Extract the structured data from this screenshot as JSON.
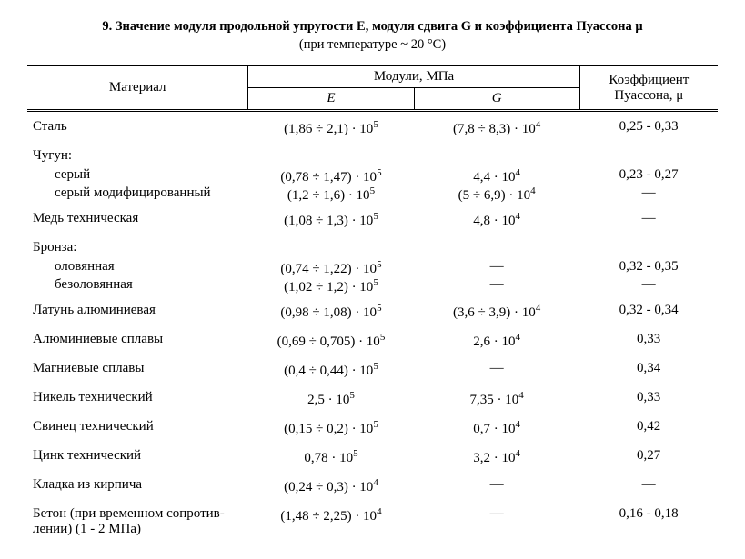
{
  "title": {
    "bold": "9. Значение модуля продольной упругости E, модуля сдвига G и коэффициента Пуассона μ",
    "sub": "(при температуре ~ 20 °C)"
  },
  "headers": {
    "material": "Материал",
    "moduli": "Модули, МПа",
    "E": "E",
    "G": "G",
    "poisson": "Коэффициент Пуассона, μ"
  },
  "rows": {
    "steel": {
      "m": "Сталь",
      "E": "(1,86 ÷ 2,1) · 10",
      "Ee": "5",
      "G": "(7,8 ÷ 8,3) · 10",
      "Ge": "4",
      "mu": "0,25 - 0,33"
    },
    "castiron_h": {
      "m": "Чугун:"
    },
    "castiron_gray": {
      "m": "серый",
      "E": "(0,78 ÷ 1,47) · 10",
      "Ee": "5",
      "G": "4,4 · 10",
      "Ge": "4",
      "mu": "0,23 - 0,27"
    },
    "castiron_mod": {
      "m": "серый модифицированный",
      "E": "(1,2 ÷ 1,6) · 10",
      "Ee": "5",
      "G": "(5 ÷ 6,9) · 10",
      "Ge": "4",
      "mu": "—"
    },
    "copper": {
      "m": "Медь техническая",
      "E": "(1,08 ÷ 1,3) · 10",
      "Ee": "5",
      "G": "4,8 · 10",
      "Ge": "4",
      "mu": "—"
    },
    "bronze_h": {
      "m": "Бронза:"
    },
    "bronze_tin": {
      "m": "оловянная",
      "E": "(0,74 ÷ 1,22) · 10",
      "Ee": "5",
      "G": "—",
      "Ge": "",
      "mu": "0,32 - 0,35"
    },
    "bronze_notin": {
      "m": "безоловянная",
      "E": "(1,02 ÷ 1,2) · 10",
      "Ee": "5",
      "G": "—",
      "Ge": "",
      "mu": "—"
    },
    "brass": {
      "m": "Латунь алюминиевая",
      "E": "(0,98 ÷ 1,08) · 10",
      "Ee": "5",
      "G": "(3,6 ÷ 3,9) · 10",
      "Ge": "4",
      "mu": "0,32 - 0,34"
    },
    "aluminium": {
      "m": "Алюминиевые сплавы",
      "E": "(0,69 ÷ 0,705) · 10",
      "Ee": "5",
      "G": "2,6 · 10",
      "Ge": "4",
      "mu": "0,33"
    },
    "magnesium": {
      "m": "Магниевые сплавы",
      "E": "(0,4 ÷ 0,44) · 10",
      "Ee": "5",
      "G": "—",
      "Ge": "",
      "mu": "0,34"
    },
    "nickel": {
      "m": "Никель технический",
      "E": "2,5 · 10",
      "Ee": "5",
      "G": "7,35 · 10",
      "Ge": "4",
      "mu": "0,33"
    },
    "lead": {
      "m": "Свинец технический",
      "E": "(0,15 ÷ 0,2) · 10",
      "Ee": "5",
      "G": "0,7 · 10",
      "Ge": "4",
      "mu": "0,42"
    },
    "zinc": {
      "m": "Цинк технический",
      "E": "0,78 · 10",
      "Ee": "5",
      "G": "3,2 · 10",
      "Ge": "4",
      "mu": "0,27"
    },
    "brick": {
      "m": "Кладка из кирпича",
      "E": "(0,24 ÷ 0,3) · 10",
      "Ee": "4",
      "G": "—",
      "Ge": "",
      "mu": "—"
    },
    "concrete": {
      "m": "Бетон (при временном сопротив-",
      "m2": "лении) (1 - 2 МПа)",
      "E": "(1,48 ÷ 2,25) · 10",
      "Ee": "4",
      "G": "—",
      "Ge": "",
      "mu": "0,16 - 0,18"
    }
  }
}
